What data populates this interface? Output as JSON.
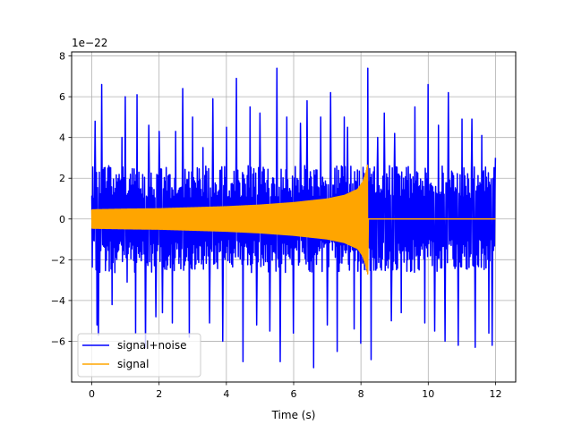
{
  "chart_data": {
    "type": "line",
    "title": "",
    "xlabel": "Time (s)",
    "ylabel": "",
    "y_offset_label": "1e−22",
    "xlim": [
      -0.6,
      12.6
    ],
    "ylim": [
      -8.0,
      8.2
    ],
    "xticks": [
      0,
      2,
      4,
      6,
      8,
      10,
      12
    ],
    "yticks": [
      -6,
      -4,
      -2,
      0,
      2,
      4,
      6,
      8
    ],
    "xtick_labels": [
      "0",
      "2",
      "4",
      "6",
      "8",
      "10",
      "12"
    ],
    "ytick_labels": [
      "−6",
      "−4",
      "−2",
      "0",
      "2",
      "4",
      "6",
      "8"
    ],
    "grid": true,
    "legend": {
      "position": "lower-left"
    },
    "series": [
      {
        "name": "signal+noise",
        "color": "#0000ff",
        "kind": "noise-envelope",
        "x_range": [
          0,
          12
        ],
        "typical_amplitude": 2.2,
        "peaks": [
          {
            "x": 0.1,
            "y": 4.8
          },
          {
            "x": 0.15,
            "y": -5.2
          },
          {
            "x": 0.2,
            "y": -5.7
          },
          {
            "x": 0.3,
            "y": 6.6
          },
          {
            "x": 0.6,
            "y": -4.2
          },
          {
            "x": 0.9,
            "y": 4.0
          },
          {
            "x": 1.0,
            "y": 6.0
          },
          {
            "x": 1.05,
            "y": -3.1
          },
          {
            "x": 1.3,
            "y": -5.6
          },
          {
            "x": 1.35,
            "y": 6.1
          },
          {
            "x": 1.6,
            "y": -6.3
          },
          {
            "x": 1.7,
            "y": 4.6
          },
          {
            "x": 1.9,
            "y": -4.8
          },
          {
            "x": 2.0,
            "y": 4.3
          },
          {
            "x": 2.1,
            "y": -4.6
          },
          {
            "x": 2.4,
            "y": -5.1
          },
          {
            "x": 2.5,
            "y": 4.3
          },
          {
            "x": 2.7,
            "y": 6.4
          },
          {
            "x": 2.9,
            "y": -5.8
          },
          {
            "x": 3.0,
            "y": 5.0
          },
          {
            "x": 3.3,
            "y": 3.5
          },
          {
            "x": 3.5,
            "y": -5.1
          },
          {
            "x": 3.6,
            "y": 5.9
          },
          {
            "x": 3.9,
            "y": -6.0
          },
          {
            "x": 4.0,
            "y": 4.5
          },
          {
            "x": 4.3,
            "y": 6.9
          },
          {
            "x": 4.5,
            "y": -7.0
          },
          {
            "x": 4.7,
            "y": 5.5
          },
          {
            "x": 4.9,
            "y": -5.2
          },
          {
            "x": 5.0,
            "y": 5.2
          },
          {
            "x": 5.3,
            "y": -5.5
          },
          {
            "x": 5.5,
            "y": 7.4
          },
          {
            "x": 5.6,
            "y": -7.0
          },
          {
            "x": 5.8,
            "y": 5.0
          },
          {
            "x": 6.0,
            "y": -5.6
          },
          {
            "x": 6.2,
            "y": 4.7
          },
          {
            "x": 6.4,
            "y": 5.8
          },
          {
            "x": 6.6,
            "y": -7.3
          },
          {
            "x": 6.8,
            "y": 5.0
          },
          {
            "x": 7.0,
            "y": -5.2
          },
          {
            "x": 7.1,
            "y": 6.2
          },
          {
            "x": 7.3,
            "y": -6.5
          },
          {
            "x": 7.5,
            "y": 5.0
          },
          {
            "x": 7.6,
            "y": 4.5
          },
          {
            "x": 7.8,
            "y": -5.4
          },
          {
            "x": 8.0,
            "y": -6.1
          },
          {
            "x": 8.2,
            "y": 7.4
          },
          {
            "x": 8.3,
            "y": -6.9
          },
          {
            "x": 8.5,
            "y": 4.0
          },
          {
            "x": 8.7,
            "y": 5.2
          },
          {
            "x": 8.9,
            "y": -5.0
          },
          {
            "x": 9.0,
            "y": 4.2
          },
          {
            "x": 9.2,
            "y": -4.6
          },
          {
            "x": 9.6,
            "y": 5.5
          },
          {
            "x": 9.9,
            "y": -5.1
          },
          {
            "x": 10.0,
            "y": 6.6
          },
          {
            "x": 10.2,
            "y": -5.5
          },
          {
            "x": 10.3,
            "y": 4.6
          },
          {
            "x": 10.5,
            "y": -6.0
          },
          {
            "x": 10.6,
            "y": 6.2
          },
          {
            "x": 10.9,
            "y": -6.2
          },
          {
            "x": 11.0,
            "y": 4.9
          },
          {
            "x": 11.3,
            "y": 4.9
          },
          {
            "x": 11.4,
            "y": -6.3
          },
          {
            "x": 11.6,
            "y": 4.1
          },
          {
            "x": 11.8,
            "y": -5.6
          },
          {
            "x": 11.9,
            "y": -6.2
          },
          {
            "x": 12.0,
            "y": 3.0
          }
        ]
      },
      {
        "name": "signal",
        "color": "#ffa500",
        "kind": "chirp",
        "x_range": [
          0,
          12
        ],
        "merger_time": 8.2,
        "envelope": [
          {
            "x": 0.0,
            "y": 0.45
          },
          {
            "x": 1.0,
            "y": 0.48
          },
          {
            "x": 2.0,
            "y": 0.5
          },
          {
            "x": 3.0,
            "y": 0.55
          },
          {
            "x": 4.0,
            "y": 0.6
          },
          {
            "x": 5.0,
            "y": 0.68
          },
          {
            "x": 6.0,
            "y": 0.8
          },
          {
            "x": 7.0,
            "y": 0.98
          },
          {
            "x": 7.5,
            "y": 1.15
          },
          {
            "x": 7.9,
            "y": 1.45
          },
          {
            "x": 8.05,
            "y": 1.8
          },
          {
            "x": 8.15,
            "y": 2.3
          },
          {
            "x": 8.2,
            "y": 2.7
          },
          {
            "x": 8.22,
            "y": 0.0
          },
          {
            "x": 12.0,
            "y": 0.0
          }
        ]
      }
    ]
  }
}
